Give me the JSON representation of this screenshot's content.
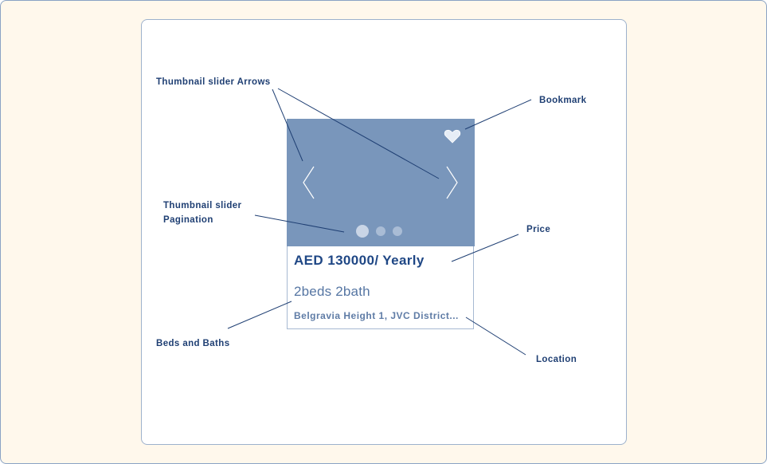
{
  "card": {
    "price": "AED 130000/ Yearly",
    "beds_baths": "2beds 2bath",
    "location": "Belgravia Height 1, JVC District...",
    "pagination": {
      "total": 3,
      "active": 1
    }
  },
  "annotations": {
    "arrows": "Thumbnail slider Arrows",
    "bookmark": "Bookmark",
    "pagination_line1": "Thumbnail slider",
    "pagination_line2": "Pagination",
    "price": "Price",
    "beds_baths": "Beds and Baths",
    "location": "Location"
  },
  "icons": {
    "left_arrow": "chevron-left-icon",
    "right_arrow": "chevron-right-icon",
    "bookmark": "heart-icon"
  },
  "colors": {
    "background": "#fff8ec",
    "thumbnail": "#7996bb",
    "text_primary": "#1f4785",
    "annotation": "#1f3f73"
  }
}
